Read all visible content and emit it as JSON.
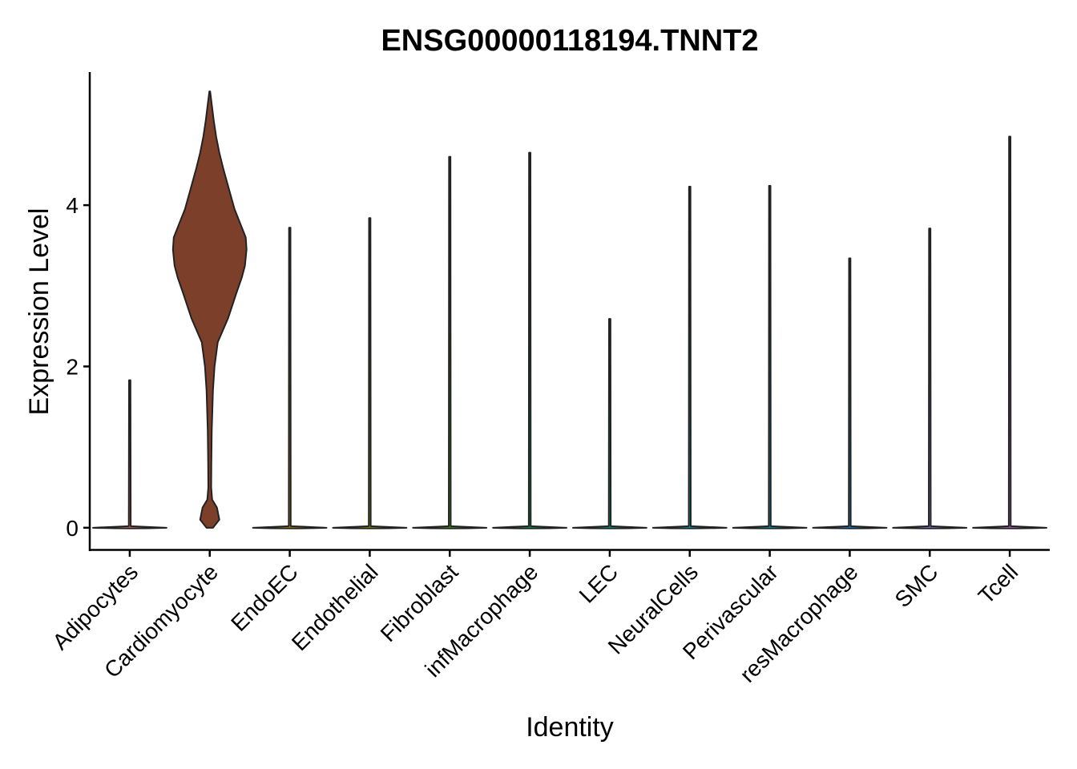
{
  "chart_data": {
    "type": "violin",
    "title": "ENSG00000118194.TNNT2",
    "xlabel": "Identity",
    "ylabel": "Expression Level",
    "ylim": [
      -0.27,
      5.65
    ],
    "yticks": [
      0,
      2,
      4
    ],
    "grid": false,
    "legend": "none",
    "categories": [
      "Adipocytes",
      "Cardiomyocyte",
      "EndoEC",
      "Endothelial",
      "Fibroblast",
      "infMacrophage",
      "LEC",
      "NeuralCells",
      "Perivascular",
      "resMacrophage",
      "SMC",
      "Tcell"
    ],
    "max_values": [
      1.83,
      5.41,
      3.72,
      3.84,
      4.6,
      4.65,
      2.59,
      4.23,
      4.24,
      3.34,
      3.71,
      4.85
    ],
    "fill_colors": [
      "#F8766D",
      "#7B3F2A",
      "#C49A00",
      "#99A800",
      "#53B400",
      "#00BC56",
      "#00C094",
      "#00BFC4",
      "#00B6EB",
      "#06A4FF",
      "#A58AFF",
      "#DF70F8"
    ],
    "cardiomyocyte_profile": {
      "y": [
        0.0,
        0.1,
        0.25,
        0.35,
        0.5,
        0.8,
        1.2,
        1.7,
        2.0,
        2.3,
        2.6,
        2.9,
        3.1,
        3.25,
        3.45,
        3.6,
        3.75,
        3.95,
        4.2,
        4.45,
        4.65,
        4.85,
        5.05,
        5.25,
        5.41
      ],
      "half_width": [
        0.04,
        0.12,
        0.09,
        0.03,
        0.018,
        0.02,
        0.025,
        0.04,
        0.06,
        0.1,
        0.23,
        0.33,
        0.4,
        0.44,
        0.46,
        0.45,
        0.39,
        0.31,
        0.24,
        0.17,
        0.12,
        0.08,
        0.05,
        0.025,
        0.005
      ]
    }
  }
}
